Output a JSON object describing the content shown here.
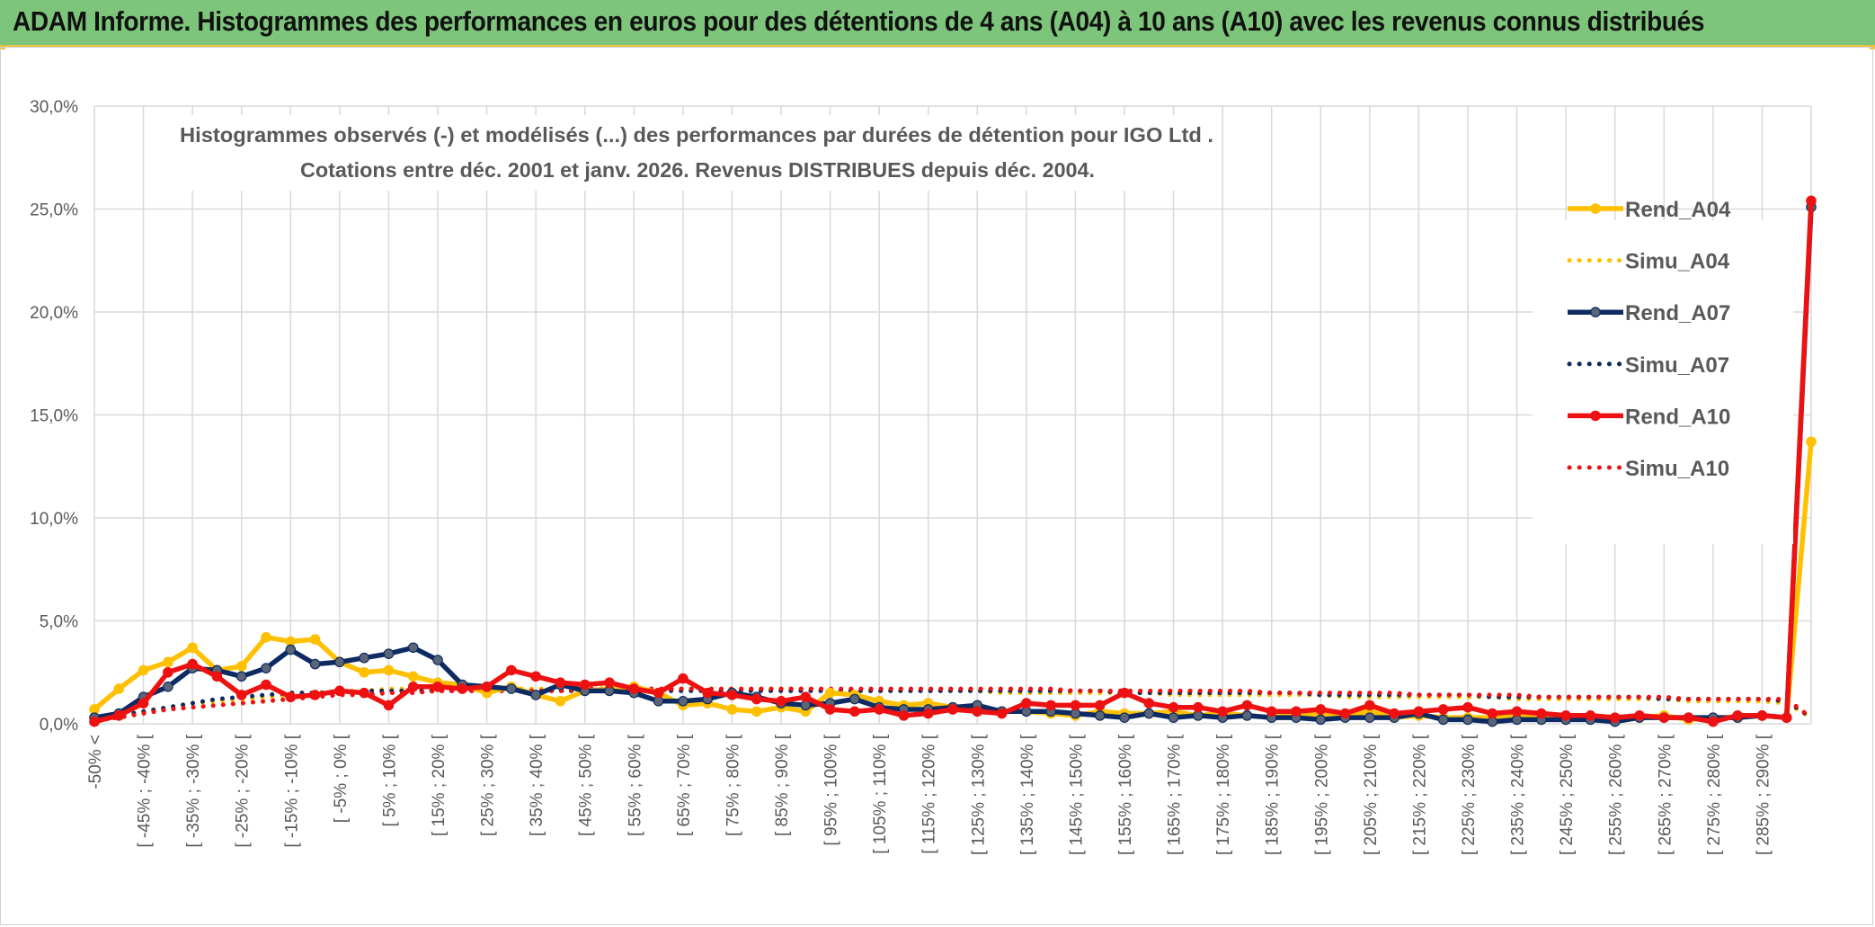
{
  "header": {
    "banner_text": "ADAM Informe. Histogrammes des performances en euros pour des détentions de 4 ans (A04) à 10 ans (A10) avec les revenus connus distribués"
  },
  "colors": {
    "banner_bg": "#7dc57a",
    "banner_accent": "#e8c33a",
    "A04": "#ffc000",
    "A07": "#0d2a62",
    "A10": "#ee1111",
    "marker_A07": "#5a6678"
  },
  "chart_data": {
    "type": "line",
    "title": "Histogrammes observés (-) et modélisés (...) des performances par durées de détention pour IGO Ltd .",
    "subtitle": "Cotations entre déc. 2001 et janv. 2026. Revenus DISTRIBUES depuis déc. 2004.",
    "xlabel": "",
    "ylabel": "",
    "ylim": [
      0,
      30
    ],
    "y_ticks": [
      "0,0%",
      "5,0%",
      "10,0%",
      "15,0%",
      "20,0%",
      "25,0%",
      "30,0%"
    ],
    "grid": true,
    "legend_position": "right",
    "categories": [
      "-50% <",
      "[ -50% ; -45% [",
      "[ -45% ; -40% [",
      "[ -40% ; -35% [",
      "[ -35% ; -30% [",
      "[ -30% ; -25% [",
      "[ -25% ; -20% [",
      "[ -20% ; -15% [",
      "[ -15% ; -10% [",
      "[ -10% ; -5% [",
      "[ -5% ; 0% [",
      "[ 0% ; 5% [",
      "[ 5% ; 10% [",
      "[ 10% ; 15% [",
      "[ 15% ; 20% [",
      "[ 20% ; 25% [",
      "[ 25% ; 30% [",
      "[ 30% ; 35% [",
      "[ 35% ; 40% [",
      "[ 40% ; 45% [",
      "[ 45% ; 50% [",
      "[ 50% ; 55% [",
      "[ 55% ; 60% [",
      "[ 60% ; 65% [",
      "[ 65% ; 70% [",
      "[ 70% ; 75% [",
      "[ 75% ; 80% [",
      "[ 80% ; 85% [",
      "[ 85% ; 90% [",
      "[ 90% ; 95% [",
      "[ 95% ; 100% [",
      "[ 100% ; 105% [",
      "[ 105% ; 110% [",
      "[ 110% ; 115% [",
      "[ 115% ; 120% [",
      "[ 120% ; 125% [",
      "[ 125% ; 130% [",
      "[ 130% ; 135% [",
      "[ 135% ; 140% [",
      "[ 140% ; 145% [",
      "[ 145% ; 150% [",
      "[ 150% ; 155% [",
      "[ 155% ; 160% [",
      "[ 160% ; 165% [",
      "[ 165% ; 170% [",
      "[ 170% ; 175% [",
      "[ 175% ; 180% [",
      "[ 180% ; 185% [",
      "[ 185% ; 190% [",
      "[ 190% ; 195% [",
      "[ 195% ; 200% [",
      "[ 200% ; 205% [",
      "[ 205% ; 210% [",
      "[ 210% ; 215% [",
      "[ 215% ; 220% [",
      "[ 220% ; 225% [",
      "[ 225% ; 230% [",
      "[ 230% ; 235% [",
      "[ 235% ; 240% [",
      "[ 240% ; 245% [",
      "[ 245% ; 250% [",
      "[ 250% ; 255% [",
      "[ 255% ; 260% [",
      "[ 260% ; 265% [",
      "[ 265% ; 270% [",
      "[ 270% ; 275% [",
      "[ 275% ; 280% [",
      "[ 280% ; 285% [",
      "[ 285% ; 290% [",
      "[ 290% ; 295% [",
      "[ 295% ; 300% ["
    ],
    "x_tick_labels": [
      "-50% <",
      "[ -45% ; -40% [",
      "[ -35% ; -30% [",
      "[ -25% ; -20% [",
      "[ -15% ; -10% [",
      "[ -5% ; 0% [",
      "[ 5% ; 10% [",
      "[ 15% ; 20% [",
      "[ 25% ; 30% [",
      "[ 35% ; 40% [",
      "[ 45% ; 50% [",
      "[ 55% ; 60% [",
      "[ 65% ; 70% [",
      "[ 75% ; 80% [",
      "[ 85% ; 90% [",
      "[ 95% ; 100% [",
      "[ 105% ; 110% [",
      "[ 115% ; 120% [",
      "[ 125% ; 130% [",
      "[ 135% ; 140% [",
      "[ 145% ; 150% [",
      "[ 155% ; 160% [",
      "[ 165% ; 170% [",
      "[ 175% ; 180% [",
      "[ 185% ; 190% [",
      "[ 195% ; 200% [",
      "[ 205% ; 210% [",
      "[ 215% ; 220% [",
      "[ 225% ; 230% [",
      "[ 235% ; 240% [",
      "[ 245% ; 250% [",
      "[ 255% ; 260% [",
      "[ 265% ; 270% [",
      "[ 275% ; 280% [",
      "[ 285% ; 290% ["
    ],
    "series": [
      {
        "name": "Rend_A04",
        "style": "solid",
        "color": "#ffc000",
        "values": [
          0.7,
          1.7,
          2.6,
          3.0,
          3.7,
          2.6,
          2.8,
          4.2,
          4.0,
          4.1,
          3.0,
          2.5,
          2.6,
          2.3,
          2.0,
          1.9,
          1.5,
          1.8,
          1.4,
          1.1,
          1.6,
          1.7,
          1.8,
          1.5,
          0.9,
          1.0,
          0.7,
          0.6,
          0.8,
          0.6,
          1.5,
          1.4,
          1.1,
          0.9,
          1.0,
          0.8,
          0.7,
          0.6,
          0.6,
          0.5,
          0.4,
          0.6,
          0.5,
          0.5,
          0.6,
          0.4,
          0.5,
          0.4,
          0.3,
          0.5,
          0.4,
          0.4,
          0.6,
          0.3,
          0.4,
          0.3,
          0.3,
          0.3,
          0.4,
          0.3,
          0.2,
          0.3,
          0.2,
          0.3,
          0.4,
          0.2,
          0.3,
          0.3,
          0.4,
          0.3,
          13.7
        ]
      },
      {
        "name": "Simu_A04",
        "style": "dotted",
        "color": "#ffc000",
        "values": [
          0.2,
          0.4,
          0.6,
          0.8,
          1.0,
          1.1,
          1.2,
          1.3,
          1.4,
          1.5,
          1.6,
          1.6,
          1.7,
          1.7,
          1.7,
          1.7,
          1.7,
          1.7,
          1.7,
          1.7,
          1.7,
          1.7,
          1.7,
          1.7,
          1.7,
          1.7,
          1.7,
          1.7,
          1.7,
          1.7,
          1.6,
          1.6,
          1.6,
          1.6,
          1.6,
          1.6,
          1.6,
          1.5,
          1.5,
          1.5,
          1.5,
          1.5,
          1.5,
          1.5,
          1.4,
          1.4,
          1.4,
          1.4,
          1.4,
          1.4,
          1.4,
          1.3,
          1.3,
          1.3,
          1.3,
          1.3,
          1.3,
          1.3,
          1.2,
          1.2,
          1.2,
          1.2,
          1.2,
          1.2,
          1.2,
          1.1,
          1.1,
          1.1,
          1.1,
          1.0,
          0.3
        ]
      },
      {
        "name": "Rend_A07",
        "style": "solid",
        "color": "#0d2a62",
        "values": [
          0.3,
          0.5,
          1.3,
          1.8,
          2.7,
          2.6,
          2.3,
          2.7,
          3.6,
          2.9,
          3.0,
          3.2,
          3.4,
          3.7,
          3.1,
          1.9,
          1.8,
          1.7,
          1.4,
          1.9,
          1.6,
          1.6,
          1.5,
          1.1,
          1.1,
          1.2,
          1.5,
          1.3,
          1.0,
          0.9,
          1.0,
          1.2,
          0.8,
          0.7,
          0.7,
          0.8,
          0.9,
          0.6,
          0.6,
          0.6,
          0.5,
          0.4,
          0.3,
          0.5,
          0.3,
          0.4,
          0.3,
          0.4,
          0.3,
          0.3,
          0.2,
          0.3,
          0.3,
          0.3,
          0.5,
          0.2,
          0.2,
          0.1,
          0.2,
          0.2,
          0.2,
          0.2,
          0.1,
          0.3,
          0.3,
          0.3,
          0.3,
          0.3,
          0.4,
          0.3,
          25.1
        ]
      },
      {
        "name": "Simu_A07",
        "style": "dotted",
        "color": "#0d2a62",
        "values": [
          0.2,
          0.4,
          0.6,
          0.8,
          1.0,
          1.2,
          1.3,
          1.4,
          1.5,
          1.5,
          1.5,
          1.6,
          1.6,
          1.6,
          1.6,
          1.6,
          1.6,
          1.6,
          1.6,
          1.6,
          1.6,
          1.6,
          1.6,
          1.6,
          1.6,
          1.6,
          1.6,
          1.6,
          1.6,
          1.6,
          1.6,
          1.6,
          1.6,
          1.6,
          1.6,
          1.6,
          1.6,
          1.6,
          1.6,
          1.6,
          1.6,
          1.6,
          1.5,
          1.5,
          1.5,
          1.5,
          1.5,
          1.5,
          1.5,
          1.5,
          1.4,
          1.4,
          1.4,
          1.4,
          1.4,
          1.4,
          1.4,
          1.3,
          1.3,
          1.3,
          1.3,
          1.3,
          1.3,
          1.3,
          1.2,
          1.2,
          1.2,
          1.2,
          1.2,
          1.1,
          0.3
        ]
      },
      {
        "name": "Rend_A10",
        "style": "solid",
        "color": "#ee1111",
        "values": [
          0.1,
          0.4,
          1.0,
          2.5,
          2.9,
          2.3,
          1.4,
          1.9,
          1.3,
          1.4,
          1.6,
          1.5,
          0.9,
          1.8,
          1.8,
          1.7,
          1.8,
          2.6,
          2.3,
          2.0,
          1.9,
          2.0,
          1.7,
          1.5,
          2.2,
          1.5,
          1.4,
          1.2,
          1.1,
          1.3,
          0.7,
          0.6,
          0.7,
          0.4,
          0.5,
          0.7,
          0.6,
          0.5,
          1.0,
          0.9,
          0.9,
          0.9,
          1.5,
          1.0,
          0.8,
          0.8,
          0.6,
          0.9,
          0.6,
          0.6,
          0.7,
          0.5,
          0.9,
          0.5,
          0.6,
          0.7,
          0.8,
          0.5,
          0.6,
          0.5,
          0.4,
          0.4,
          0.3,
          0.4,
          0.3,
          0.3,
          0.1,
          0.4,
          0.4,
          0.3,
          25.4
        ]
      },
      {
        "name": "Simu_A10",
        "style": "dotted",
        "color": "#ee1111",
        "values": [
          0.2,
          0.3,
          0.5,
          0.7,
          0.8,
          0.9,
          1.0,
          1.1,
          1.2,
          1.3,
          1.4,
          1.4,
          1.5,
          1.5,
          1.6,
          1.6,
          1.6,
          1.6,
          1.6,
          1.6,
          1.7,
          1.7,
          1.7,
          1.7,
          1.7,
          1.7,
          1.7,
          1.7,
          1.7,
          1.7,
          1.7,
          1.7,
          1.7,
          1.7,
          1.7,
          1.7,
          1.7,
          1.7,
          1.7,
          1.7,
          1.6,
          1.6,
          1.6,
          1.6,
          1.6,
          1.6,
          1.6,
          1.6,
          1.5,
          1.5,
          1.5,
          1.5,
          1.5,
          1.5,
          1.4,
          1.4,
          1.4,
          1.4,
          1.4,
          1.3,
          1.3,
          1.3,
          1.3,
          1.3,
          1.3,
          1.2,
          1.2,
          1.2,
          1.2,
          1.2,
          0.3
        ]
      }
    ]
  }
}
